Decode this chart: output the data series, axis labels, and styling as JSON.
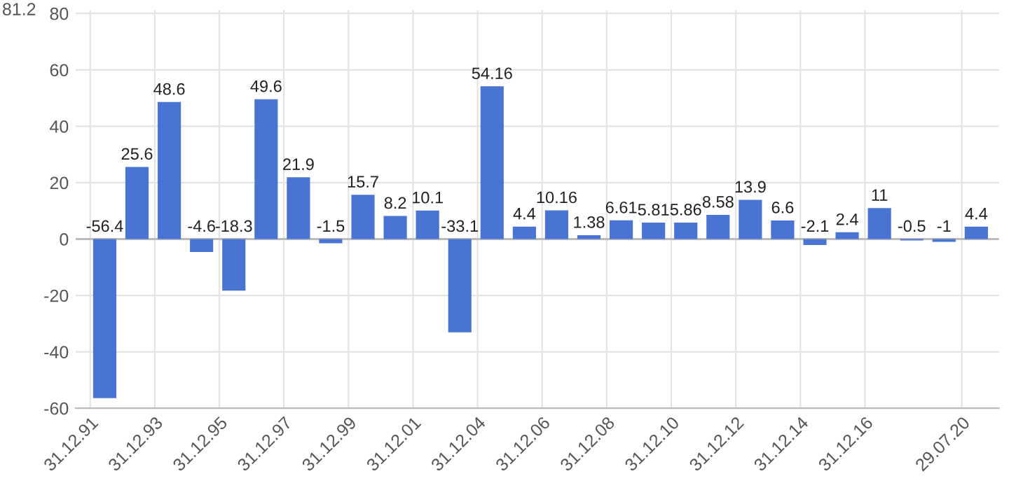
{
  "chart_data": {
    "type": "bar",
    "categories": [
      "31.12.91",
      null,
      "31.12.93",
      null,
      "31.12.95",
      null,
      "31.12.97",
      null,
      "31.12.99",
      null,
      "31.12.01",
      null,
      "31.12.04",
      null,
      "31.12.06",
      null,
      "31.12.08",
      null,
      "31.12.10",
      null,
      "31.12.12",
      null,
      "31.12.14",
      null,
      "31.12.16",
      null,
      null,
      "29.07.20"
    ],
    "values": [
      -56.4,
      25.6,
      48.6,
      -4.6,
      -18.3,
      49.6,
      21.9,
      -1.5,
      15.7,
      8.2,
      10.1,
      -33.1,
      54.16,
      4.4,
      10.16,
      1.38,
      6.61,
      5.81,
      5.86,
      8.58,
      13.9,
      6.6,
      -2.1,
      2.4,
      11,
      -0.5,
      -1,
      4.4
    ],
    "color": "#4a74d4",
    "ylim": [
      -60,
      81.2
    ],
    "yticks": [
      -60,
      -40,
      -20,
      0,
      20,
      40,
      60,
      80
    ],
    "annotations": [
      "81.2"
    ],
    "grid": true,
    "data_labels": true
  }
}
